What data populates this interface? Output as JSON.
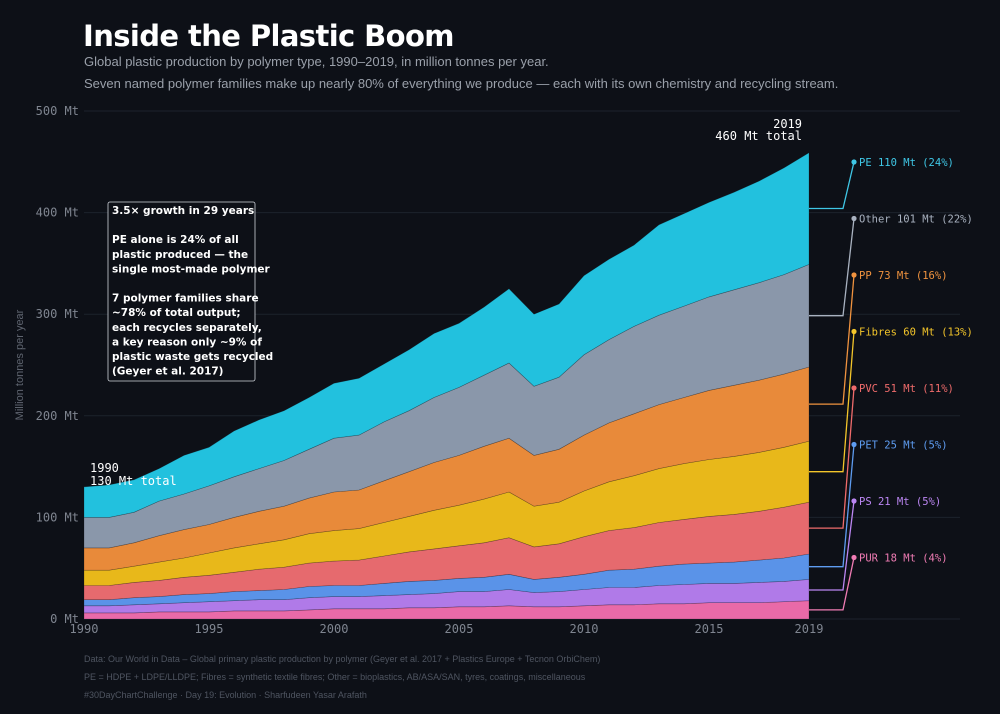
{
  "header": {
    "title": "Inside the Plastic Boom",
    "subtitle1": "Global plastic production by polymer type, 1990–2019, in million tonnes per year.",
    "subtitle2": "Seven named polymer families make up nearly 80% of everything we produce — each with its own chemistry and recycling stream."
  },
  "annotation": {
    "lines": [
      "3.5× growth in 29 years",
      "",
      "PE alone is 24% of all",
      "plastic produced — the",
      "single most-made polymer",
      "",
      "7 polymer families share",
      "~78% of total output;",
      "each recycles separately,",
      "a key reason only ~9% of",
      "plastic waste gets recycled",
      "(Geyer et al. 2017)"
    ]
  },
  "callouts": {
    "start_year": "1990",
    "start_total": "130 Mt total",
    "end_year": "2019",
    "end_total": "460 Mt total"
  },
  "legend": [
    {
      "key": "PE",
      "value": "110 Mt",
      "share": "(24%)",
      "color": "#3fc7e6"
    },
    {
      "key": "Other",
      "value": "101 Mt",
      "share": "(22%)",
      "color": "#a9b2c0"
    },
    {
      "key": "PP",
      "value": "73 Mt",
      "share": "(16%)",
      "color": "#f0933f"
    },
    {
      "key": "Fibres",
      "value": "60 Mt",
      "share": "(13%)",
      "color": "#f3c52a"
    },
    {
      "key": "PVC",
      "value": "51 Mt",
      "share": "(11%)",
      "color": "#ef6b6b"
    },
    {
      "key": "PET",
      "value": "25 Mt",
      "share": "(5%)",
      "color": "#5e9cf0"
    },
    {
      "key": "PS",
      "value": "21 Mt",
      "share": "(5%)",
      "color": "#bb86f2"
    },
    {
      "key": "PUR",
      "value": "18 Mt",
      "share": "(4%)",
      "color": "#f07cb4"
    }
  ],
  "footer": {
    "line1": "Data: Our World in Data – Global primary plastic production by polymer (Geyer et al. 2017 + Plastics Europe + Tecnon OrbiChem)",
    "line2": "PE = HDPE + LDPE/LLDPE; Fibres = synthetic textile fibres; Other = bioplastics, AB/ASA/SAN, tyres, coatings, miscellaneous",
    "line3": "#30DayChartChallenge · Day 19: Evolution · Sharfudeen Yasar Arafath"
  },
  "chart_data": {
    "type": "area",
    "stacked": true,
    "ylabel": "Million tonnes per year",
    "unit": "Mt",
    "ylim": [
      0,
      500
    ],
    "xlim": [
      1990,
      2019
    ],
    "yticks": [
      0,
      100,
      200,
      300,
      400,
      500
    ],
    "ytick_labels": [
      "0 Mt",
      "100 Mt",
      "200 Mt",
      "300 Mt",
      "400 Mt",
      "500 Mt"
    ],
    "xticks": [
      1990,
      1995,
      2000,
      2005,
      2010,
      2015,
      2019
    ],
    "x": [
      1990,
      1991,
      1992,
      1993,
      1994,
      1995,
      1996,
      1997,
      1998,
      1999,
      2000,
      2001,
      2002,
      2003,
      2004,
      2005,
      2006,
      2007,
      2008,
      2009,
      2010,
      2011,
      2012,
      2013,
      2014,
      2015,
      2016,
      2017,
      2018,
      2019
    ],
    "grid": true,
    "series": [
      {
        "name": "PUR",
        "color": "#e96aa8",
        "values": [
          6,
          6,
          6,
          7,
          7,
          7,
          8,
          8,
          8,
          9,
          10,
          10,
          10,
          11,
          11,
          12,
          12,
          13,
          12,
          12,
          13,
          14,
          14,
          15,
          15,
          16,
          16,
          16,
          17,
          18
        ]
      },
      {
        "name": "PS",
        "color": "#b07ae8",
        "values": [
          7,
          7,
          8,
          8,
          9,
          10,
          10,
          11,
          11,
          12,
          12,
          12,
          13,
          13,
          14,
          15,
          15,
          16,
          14,
          15,
          16,
          17,
          17,
          18,
          19,
          19,
          19,
          20,
          20,
          21
        ]
      },
      {
        "name": "PET",
        "color": "#5a93e8",
        "values": [
          6,
          6,
          7,
          7,
          8,
          8,
          9,
          9,
          10,
          11,
          11,
          11,
          12,
          13,
          13,
          13,
          14,
          15,
          13,
          14,
          15,
          17,
          18,
          19,
          20,
          20,
          21,
          22,
          23,
          25
        ]
      },
      {
        "name": "PVC",
        "color": "#e66a6e",
        "values": [
          14,
          14,
          15,
          16,
          17,
          18,
          19,
          21,
          22,
          23,
          24,
          25,
          27,
          29,
          31,
          32,
          34,
          36,
          32,
          33,
          37,
          39,
          41,
          43,
          44,
          46,
          47,
          48,
          50,
          51
        ]
      },
      {
        "name": "Fibres",
        "color": "#e8b81a",
        "values": [
          15,
          15,
          16,
          18,
          19,
          22,
          24,
          25,
          27,
          29,
          30,
          31,
          33,
          35,
          38,
          40,
          43,
          45,
          40,
          41,
          45,
          48,
          51,
          53,
          55,
          56,
          57,
          58,
          59,
          60
        ]
      },
      {
        "name": "PP",
        "color": "#e88a3a",
        "values": [
          22,
          22,
          23,
          26,
          28,
          28,
          30,
          32,
          33,
          35,
          38,
          38,
          41,
          44,
          47,
          49,
          52,
          53,
          50,
          52,
          55,
          58,
          61,
          63,
          65,
          68,
          70,
          71,
          72,
          73
        ]
      },
      {
        "name": "Other",
        "color": "#8a97aa",
        "values": [
          30,
          30,
          30,
          34,
          35,
          38,
          40,
          42,
          45,
          48,
          53,
          54,
          58,
          60,
          64,
          67,
          70,
          74,
          68,
          71,
          79,
          82,
          86,
          88,
          90,
          92,
          94,
          96,
          98,
          101
        ]
      },
      {
        "name": "PE",
        "color": "#22c1de",
        "values": [
          30,
          32,
          32,
          32,
          38,
          38,
          45,
          48,
          49,
          51,
          54,
          56,
          57,
          60,
          63,
          63,
          67,
          73,
          71,
          72,
          78,
          79,
          80,
          89,
          91,
          93,
          96,
          100,
          105,
          110
        ]
      }
    ]
  }
}
